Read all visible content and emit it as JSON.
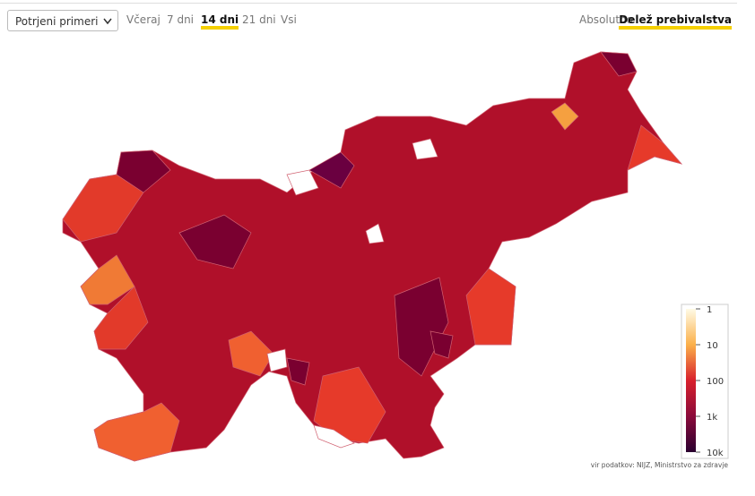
{
  "controls": {
    "dropdown": "Potrjeni primeri",
    "periods": [
      "Včeraj",
      "7 dni",
      "14 dni",
      "21 dni",
      "Vsi"
    ],
    "active_period": 2,
    "modes": [
      "Absolutno",
      "Delež prebivalstva"
    ],
    "active_mode": 1
  },
  "legend": {
    "scale": "log",
    "range": [
      1,
      10000
    ],
    "ticks": [
      1,
      10,
      100,
      {
        "value": 1000,
        "label": "1k"
      },
      {
        "value": 10000,
        "label": "10k"
      }
    ]
  },
  "source": "vir podatkov: NIJZ, Ministrstvo za zdravje"
}
